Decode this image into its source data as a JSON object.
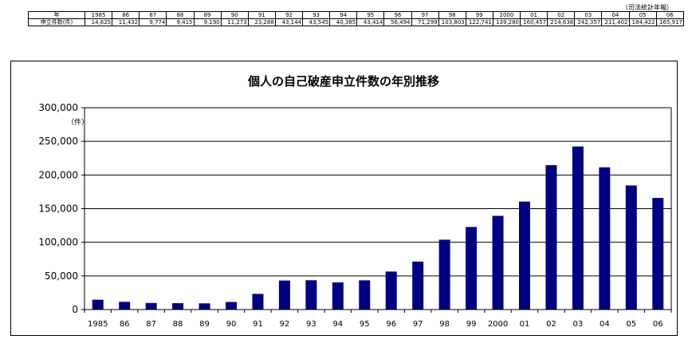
{
  "source_note": "（司法統計年報）",
  "table": {
    "year_header": "年",
    "count_header": "申立件数(件)",
    "years": [
      "1985",
      "86",
      "87",
      "88",
      "89",
      "90",
      "91",
      "92",
      "93",
      "94",
      "95",
      "96",
      "97",
      "98",
      "99",
      "2000",
      "01",
      "02",
      "03",
      "04",
      "05",
      "06"
    ],
    "counts": [
      "14,625",
      "11,432",
      "9,774",
      "9,415",
      "9,190",
      "11,273",
      "23,288",
      "43,144",
      "43,545",
      "40,385",
      "43,414",
      "56,494",
      "71,299",
      "103,803",
      "122,741",
      "139,280",
      "160,457",
      "214,638",
      "242,357",
      "211,402",
      "184,422",
      "165,917"
    ]
  },
  "chart_data": {
    "type": "bar",
    "title": "個人の自己破産申立件数の年別推移",
    "ylabel": "（件）",
    "xlabel": "",
    "categories": [
      "1985",
      "86",
      "87",
      "88",
      "89",
      "90",
      "91",
      "92",
      "93",
      "94",
      "95",
      "96",
      "97",
      "98",
      "99",
      "2000",
      "01",
      "02",
      "03",
      "04",
      "05",
      "06"
    ],
    "values": [
      14625,
      11432,
      9774,
      9415,
      9190,
      11273,
      23288,
      43144,
      43545,
      40385,
      43414,
      56494,
      71299,
      103803,
      122741,
      139280,
      160457,
      214638,
      242357,
      211402,
      184422,
      165917
    ],
    "ylim": [
      0,
      300000
    ],
    "yticks": [
      0,
      50000,
      100000,
      150000,
      200000,
      250000,
      300000
    ],
    "ytick_labels": [
      "0",
      "50,000",
      "100,000",
      "150,000",
      "200,000",
      "250,000",
      "300,000"
    ],
    "grid": true,
    "bar_color": "#000080"
  }
}
